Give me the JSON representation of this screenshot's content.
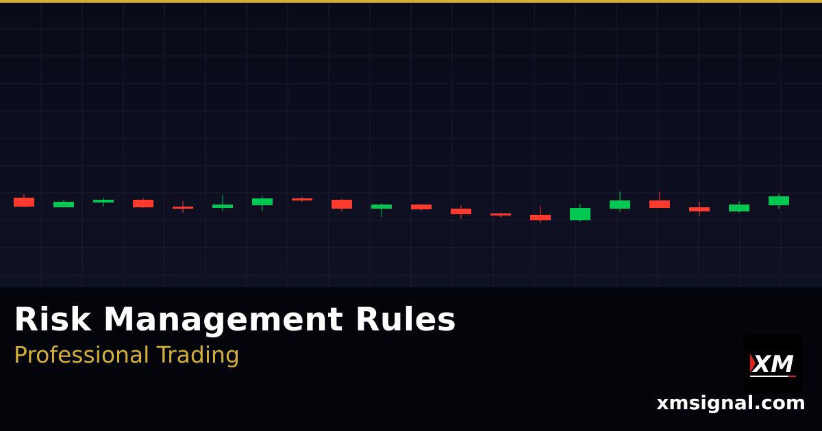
{
  "colors": {
    "accent": "#d4af37",
    "bullish": "#00c853",
    "bearish": "#ff3b30",
    "grid": "#1a1c30"
  },
  "header": {
    "title": "Risk Management Rules",
    "subtitle": "Professional Trading"
  },
  "brand": {
    "logo_text": "XM",
    "domain": "xmsignal.com"
  },
  "candles": [
    {
      "o": 11.1,
      "h": 11.7,
      "l": 9.7,
      "c": 9.8
    },
    {
      "o": 9.7,
      "h": 10.8,
      "l": 9.7,
      "c": 10.5
    },
    {
      "o": 10.4,
      "h": 11.1,
      "l": 9.8,
      "c": 10.8
    },
    {
      "o": 10.8,
      "h": 11.1,
      "l": 9.6,
      "c": 9.7
    },
    {
      "o": 9.8,
      "h": 10.6,
      "l": 8.9,
      "c": 9.5
    },
    {
      "o": 9.6,
      "h": 11.5,
      "l": 9.2,
      "c": 10.1
    },
    {
      "o": 10.0,
      "h": 11.3,
      "l": 9.2,
      "c": 11.0
    },
    {
      "o": 11.0,
      "h": 11.2,
      "l": 10.5,
      "c": 10.7
    },
    {
      "o": 10.8,
      "h": 10.9,
      "l": 9.1,
      "c": 9.5
    },
    {
      "o": 9.5,
      "h": 10.3,
      "l": 8.3,
      "c": 10.1
    },
    {
      "o": 10.1,
      "h": 10.2,
      "l": 9.2,
      "c": 9.4
    },
    {
      "o": 9.5,
      "h": 10.0,
      "l": 8.0,
      "c": 8.7
    },
    {
      "o": 8.8,
      "h": 8.9,
      "l": 8.2,
      "c": 8.5
    },
    {
      "o": 8.6,
      "h": 9.9,
      "l": 7.4,
      "c": 7.8
    },
    {
      "o": 7.8,
      "h": 10.2,
      "l": 7.6,
      "c": 9.6
    },
    {
      "o": 9.5,
      "h": 12.0,
      "l": 9.0,
      "c": 10.7
    },
    {
      "o": 10.7,
      "h": 12.0,
      "l": 9.6,
      "c": 9.6
    },
    {
      "o": 9.7,
      "h": 10.5,
      "l": 8.4,
      "c": 9.1
    },
    {
      "o": 9.1,
      "h": 10.6,
      "l": 8.9,
      "c": 10.1
    },
    {
      "o": 10.0,
      "h": 11.7,
      "l": 9.5,
      "c": 11.3
    }
  ]
}
